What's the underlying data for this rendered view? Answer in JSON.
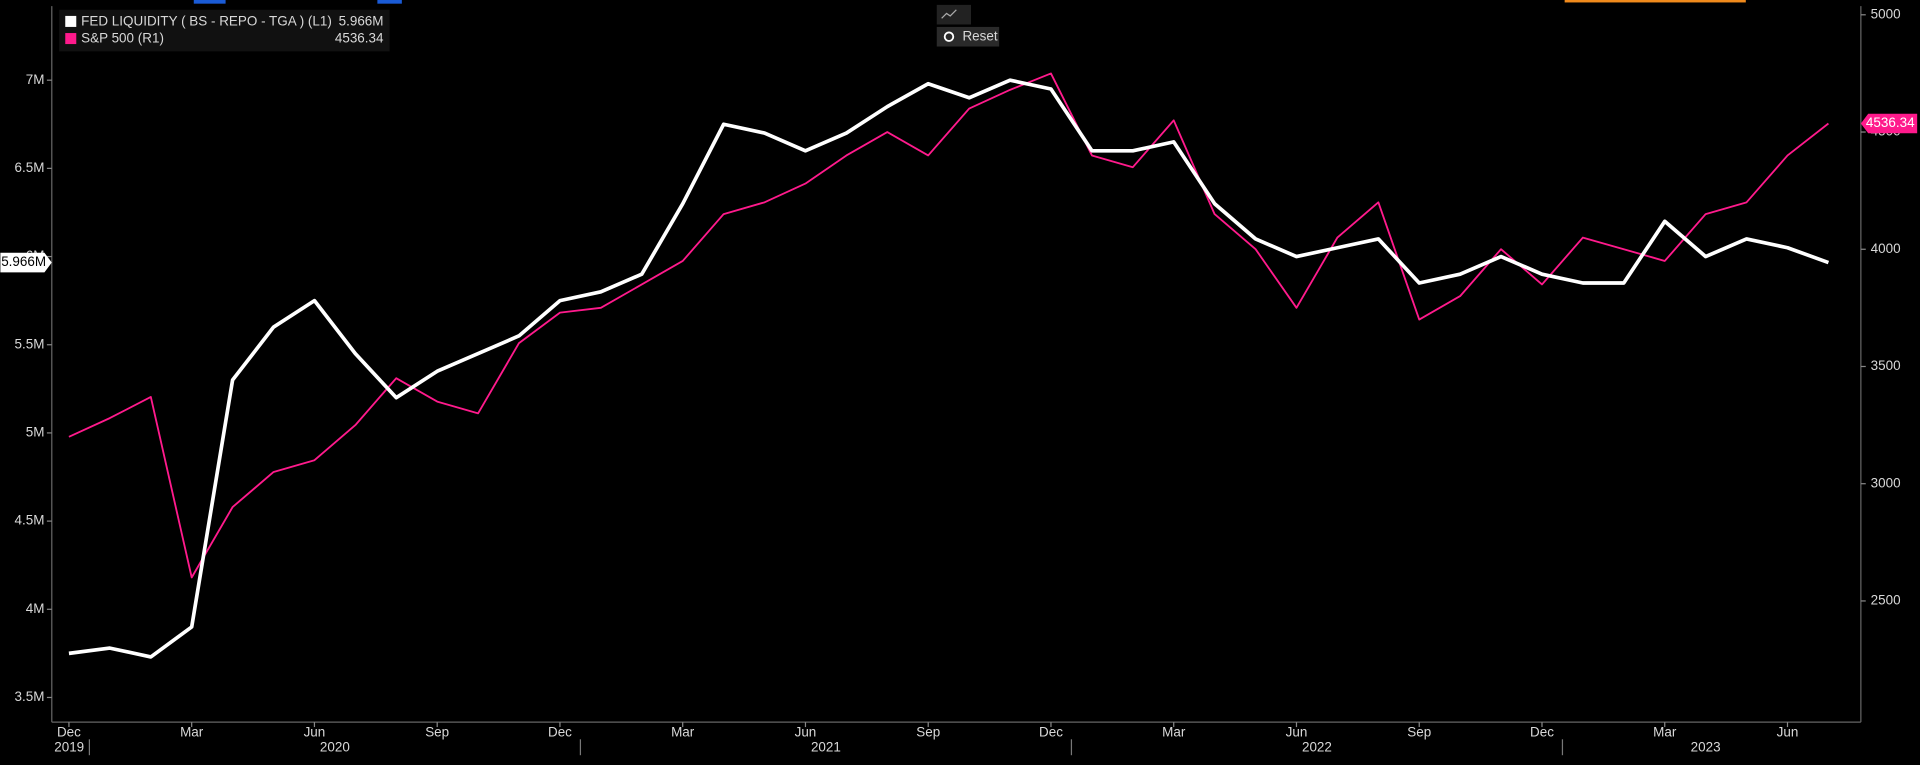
{
  "chart_data": {
    "type": "line",
    "x": [
      "2019-12",
      "2020-01",
      "2020-02",
      "2020-03",
      "2020-04",
      "2020-05",
      "2020-06",
      "2020-07",
      "2020-08",
      "2020-09",
      "2020-10",
      "2020-11",
      "2020-12",
      "2021-01",
      "2021-02",
      "2021-03",
      "2021-04",
      "2021-05",
      "2021-06",
      "2021-07",
      "2021-08",
      "2021-09",
      "2021-10",
      "2021-11",
      "2021-12",
      "2022-01",
      "2022-02",
      "2022-03",
      "2022-04",
      "2022-05",
      "2022-06",
      "2022-07",
      "2022-08",
      "2022-09",
      "2022-10",
      "2022-11",
      "2022-12",
      "2023-01",
      "2023-02",
      "2023-03",
      "2023-04",
      "2023-05",
      "2023-06",
      "2023-07"
    ],
    "series": [
      {
        "name": "FED LIQUIDITY ( BS - REPO - TGA ) (L1)",
        "color": "#ffffff",
        "axis": "y",
        "last": {
          "value": 5.966,
          "label": "5.966M"
        },
        "values": [
          3.75,
          3.78,
          3.73,
          3.9,
          5.3,
          5.6,
          5.75,
          5.45,
          5.2,
          5.35,
          5.45,
          5.55,
          5.75,
          5.8,
          5.9,
          6.3,
          6.75,
          6.7,
          6.6,
          6.7,
          6.85,
          6.98,
          6.9,
          7.0,
          6.95,
          6.6,
          6.6,
          6.65,
          6.3,
          6.1,
          6.0,
          6.05,
          6.1,
          5.85,
          5.9,
          6.0,
          5.9,
          5.85,
          5.85,
          6.2,
          6.0,
          6.1,
          6.05,
          5.966
        ]
      },
      {
        "name": "S&P 500  (R1)",
        "color": "#ff1a8c",
        "axis": "y2",
        "last": {
          "value": 4536.34,
          "label": "4536.34"
        },
        "values": [
          3200,
          3280,
          3370,
          2600,
          2900,
          3050,
          3100,
          3250,
          3450,
          3350,
          3300,
          3600,
          3730,
          3750,
          3850,
          3950,
          4150,
          4200,
          4280,
          4400,
          4500,
          4400,
          4600,
          4680,
          4750,
          4400,
          4350,
          4550,
          4150,
          4000,
          3750,
          4050,
          4200,
          3700,
          3800,
          4000,
          3850,
          4050,
          4000,
          3950,
          4150,
          4200,
          4400,
          4536.34
        ]
      }
    ],
    "ylim": [
      3.36,
      7.42
    ],
    "yticks": [
      {
        "value": 3.5,
        "label": "3.5M"
      },
      {
        "value": 4,
        "label": "4M"
      },
      {
        "value": 4.5,
        "label": "4.5M"
      },
      {
        "value": 5,
        "label": "5M"
      },
      {
        "value": 5.5,
        "label": "5.5M"
      },
      {
        "value": 6,
        "label": "6M"
      },
      {
        "value": 6.5,
        "label": "6.5M"
      },
      {
        "value": 7,
        "label": "7M"
      }
    ],
    "y2lim": [
      1983,
      5037
    ],
    "y2ticks": [
      2500,
      3000,
      3500,
      4000,
      4500,
      5000
    ],
    "xticks": [
      {
        "value": "2019-12",
        "label": "Dec"
      },
      {
        "value": "2020-03",
        "label": "Mar"
      },
      {
        "value": "2020-06",
        "label": "Jun"
      },
      {
        "value": "2020-09",
        "label": "Sep"
      },
      {
        "value": "2020-12",
        "label": "Dec"
      },
      {
        "value": "2021-03",
        "label": "Mar"
      },
      {
        "value": "2021-06",
        "label": "Jun"
      },
      {
        "value": "2021-09",
        "label": "Sep"
      },
      {
        "value": "2021-12",
        "label": "Dec"
      },
      {
        "value": "2022-03",
        "label": "Mar"
      },
      {
        "value": "2022-06",
        "label": "Jun"
      },
      {
        "value": "2022-09",
        "label": "Sep"
      },
      {
        "value": "2022-12",
        "label": "Dec"
      },
      {
        "value": "2023-03",
        "label": "Mar"
      },
      {
        "value": "2023-06",
        "label": "Jun"
      }
    ],
    "years": [
      "2019",
      "2020",
      "2021",
      "2022",
      "2023"
    ]
  },
  "toolbar": {
    "button": "Reset"
  }
}
